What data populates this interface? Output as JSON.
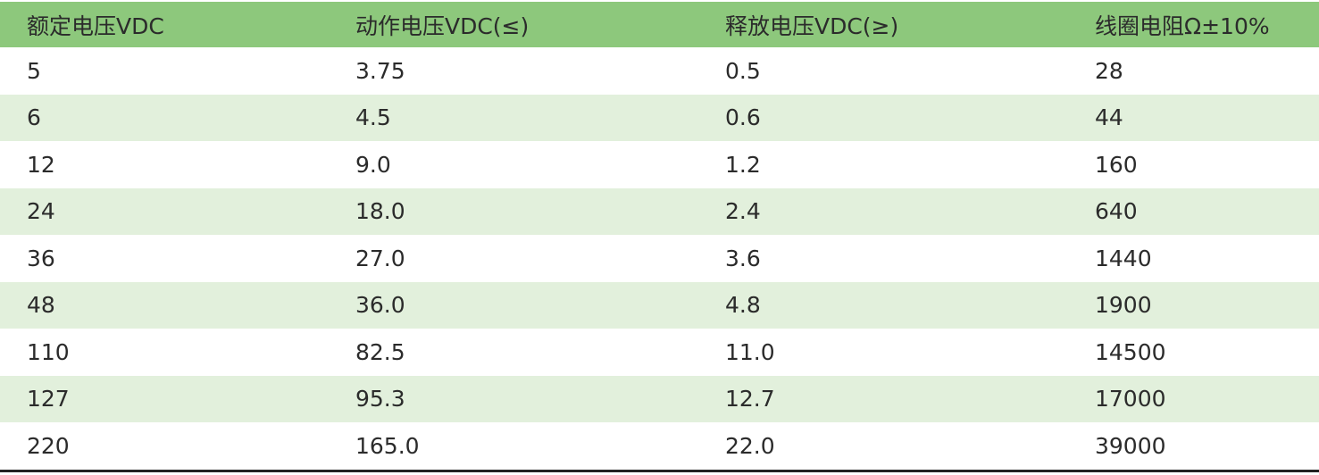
{
  "table": {
    "header": [
      "额定电压VDC",
      "动作电压VDC(≤)",
      "释放电压VDC(≥)",
      "线圈电阻Ω±10%"
    ],
    "rows": [
      [
        "5",
        "3.75",
        "0.5",
        "28"
      ],
      [
        "6",
        "4.5",
        "0.6",
        "44"
      ],
      [
        "12",
        "9.0",
        "1.2",
        "160"
      ],
      [
        "24",
        "18.0",
        "2.4",
        "640"
      ],
      [
        "36",
        "27.0",
        "3.6",
        "1440"
      ],
      [
        "48",
        "36.0",
        "4.8",
        "1900"
      ],
      [
        "110",
        "82.5",
        "11.0",
        "14500"
      ],
      [
        "127",
        "95.3",
        "12.7",
        "17000"
      ],
      [
        "220",
        "165.0",
        "22.0",
        "39000"
      ]
    ]
  }
}
